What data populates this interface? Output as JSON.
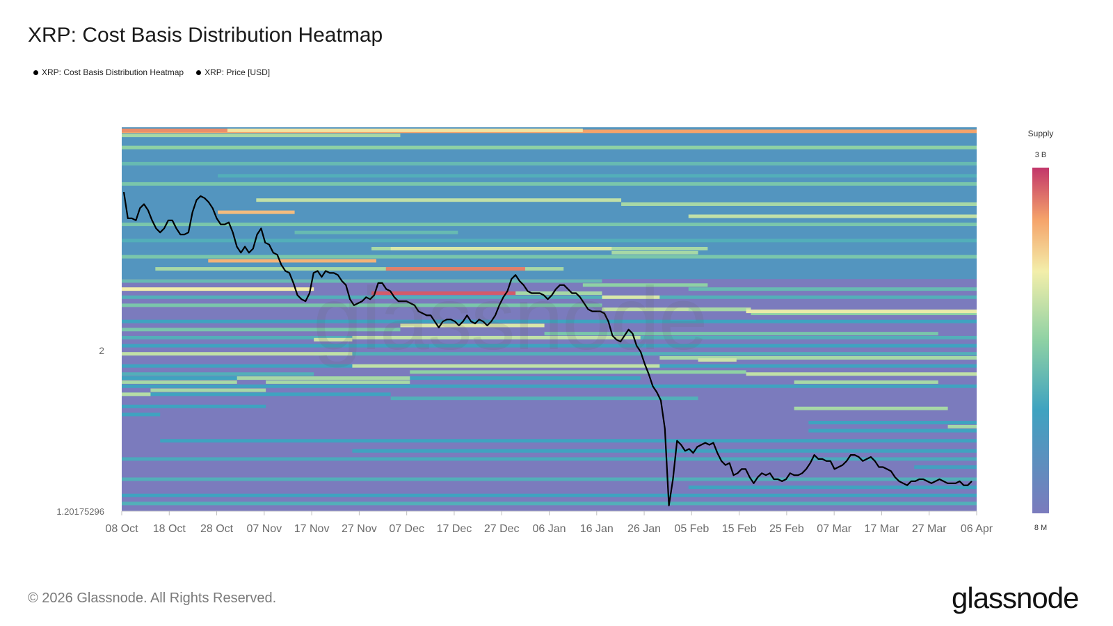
{
  "header": {
    "title": "XRP: Cost Basis Distribution Heatmap"
  },
  "legend": {
    "items": [
      "XRP: Cost Basis Distribution Heatmap",
      "XRP: Price [USD]"
    ]
  },
  "footer": {
    "copyright": "© 2026 Glassnode. All Rights Reserved.",
    "brand": "glassnode"
  },
  "watermark": "glassnode",
  "colors": {
    "low": "#7b7bbd",
    "mid1": "#3fa3c0",
    "mid2": "#8ed1a4",
    "mid3": "#f3eeaa",
    "mid4": "#f5a36a",
    "high": "#c2366a",
    "price_line": "#000000"
  },
  "chart_data": {
    "type": "heatmap",
    "title": "XRP: Cost Basis Distribution Heatmap",
    "x_ticks": [
      "08 Oct",
      "18 Oct",
      "28 Oct",
      "07 Nov",
      "17 Nov",
      "27 Nov",
      "07 Dec",
      "17 Dec",
      "27 Dec",
      "06 Jan",
      "16 Jan",
      "26 Jan",
      "05 Feb",
      "15 Feb",
      "25 Feb",
      "07 Mar",
      "17 Mar",
      "27 Mar",
      "06 Apr"
    ],
    "y_tick_labels": [
      "2",
      "1.20175296"
    ],
    "y_range": [
      1.20175296,
      3.1
    ],
    "colorbar": {
      "title": "Supply",
      "max_label": "3 B",
      "min_label": "8 M"
    },
    "bands": [
      {
        "start": 0,
        "end": 178,
        "price": 3.08,
        "level": 0.85
      },
      {
        "start": 0,
        "end": 58,
        "price": 3.06,
        "level": 0.55
      },
      {
        "start": 0,
        "end": 178,
        "price": 3.0,
        "level": 0.5
      },
      {
        "start": 0,
        "end": 178,
        "price": 2.92,
        "level": 0.4
      },
      {
        "start": 20,
        "end": 178,
        "price": 2.86,
        "level": 0.35
      },
      {
        "start": 0,
        "end": 178,
        "price": 2.82,
        "level": 0.45
      },
      {
        "start": 28,
        "end": 104,
        "price": 2.74,
        "level": 0.6
      },
      {
        "start": 104,
        "end": 178,
        "price": 2.72,
        "level": 0.55
      },
      {
        "start": 20,
        "end": 36,
        "price": 2.68,
        "level": 0.8
      },
      {
        "start": 118,
        "end": 178,
        "price": 2.66,
        "level": 0.6
      },
      {
        "start": 0,
        "end": 178,
        "price": 2.62,
        "level": 0.45
      },
      {
        "start": 36,
        "end": 70,
        "price": 2.58,
        "level": 0.4
      },
      {
        "start": 0,
        "end": 178,
        "price": 2.54,
        "level": 0.35
      },
      {
        "start": 52,
        "end": 122,
        "price": 2.5,
        "level": 0.55
      },
      {
        "start": 0,
        "end": 178,
        "price": 2.46,
        "level": 0.45
      },
      {
        "start": 7,
        "end": 92,
        "price": 2.4,
        "level": 0.55
      },
      {
        "start": 55,
        "end": 84,
        "price": 2.4,
        "level": 0.9
      },
      {
        "start": 0,
        "end": 100,
        "price": 2.34,
        "level": 0.4
      },
      {
        "start": 96,
        "end": 122,
        "price": 2.32,
        "level": 0.5
      },
      {
        "start": 118,
        "end": 178,
        "price": 2.3,
        "level": 0.4
      },
      {
        "start": 0,
        "end": 178,
        "price": 2.26,
        "level": 0.35
      },
      {
        "start": 0,
        "end": 100,
        "price": 2.22,
        "level": 0.45
      },
      {
        "start": 100,
        "end": 131,
        "price": 2.2,
        "level": 0.6
      },
      {
        "start": 131,
        "end": 178,
        "price": 2.18,
        "level": 0.5
      },
      {
        "start": 0,
        "end": 178,
        "price": 2.14,
        "level": 0.3
      },
      {
        "start": 0,
        "end": 58,
        "price": 2.1,
        "level": 0.45
      },
      {
        "start": 58,
        "end": 88,
        "price": 2.12,
        "level": 0.65
      },
      {
        "start": 88,
        "end": 170,
        "price": 2.08,
        "level": 0.45
      },
      {
        "start": 0,
        "end": 178,
        "price": 2.06,
        "level": 0.35
      },
      {
        "start": 0,
        "end": 178,
        "price": 2.02,
        "level": 0.3
      },
      {
        "start": 40,
        "end": 178,
        "price": 1.98,
        "level": 0.35
      },
      {
        "start": 122,
        "end": 178,
        "price": 1.96,
        "level": 0.4
      },
      {
        "start": 0,
        "end": 178,
        "price": 1.92,
        "level": 0.3
      },
      {
        "start": 0,
        "end": 40,
        "price": 1.88,
        "level": 0.35
      },
      {
        "start": 0,
        "end": 108,
        "price": 1.86,
        "level": 0.3
      },
      {
        "start": 0,
        "end": 178,
        "price": 1.82,
        "level": 0.3
      },
      {
        "start": 0,
        "end": 56,
        "price": 1.78,
        "level": 0.3
      },
      {
        "start": 56,
        "end": 120,
        "price": 1.76,
        "level": 0.35
      },
      {
        "start": 0,
        "end": 30,
        "price": 1.72,
        "level": 0.3
      },
      {
        "start": 0,
        "end": 8,
        "price": 1.68,
        "level": 0.3
      },
      {
        "start": 143,
        "end": 178,
        "price": 1.64,
        "level": 0.3
      },
      {
        "start": 143,
        "end": 178,
        "price": 1.6,
        "level": 0.3
      },
      {
        "start": 8,
        "end": 178,
        "price": 1.55,
        "level": 0.3
      },
      {
        "start": 48,
        "end": 178,
        "price": 1.5,
        "level": 0.3
      },
      {
        "start": 0,
        "end": 178,
        "price": 1.46,
        "level": 0.33
      },
      {
        "start": 165,
        "end": 178,
        "price": 1.42,
        "level": 0.28
      },
      {
        "start": 0,
        "end": 178,
        "price": 1.36,
        "level": 0.35
      },
      {
        "start": 118,
        "end": 178,
        "price": 1.32,
        "level": 0.3
      },
      {
        "start": 0,
        "end": 178,
        "price": 1.28,
        "level": 0.3
      },
      {
        "start": 0,
        "end": 178,
        "price": 1.24,
        "level": 0.35
      }
    ],
    "highlights": [
      {
        "start": 0,
        "end": 22,
        "price": 3.085,
        "level": 0.88
      },
      {
        "start": 22,
        "end": 96,
        "price": 3.085,
        "level": 0.72
      },
      {
        "start": 56,
        "end": 102,
        "price": 2.5,
        "level": 0.65
      },
      {
        "start": 102,
        "end": 120,
        "price": 2.48,
        "level": 0.55
      },
      {
        "start": 18,
        "end": 53,
        "price": 2.44,
        "level": 0.82
      },
      {
        "start": 0,
        "end": 40,
        "price": 2.3,
        "level": 0.7
      },
      {
        "start": 52,
        "end": 82,
        "price": 2.28,
        "level": 0.95
      },
      {
        "start": 82,
        "end": 100,
        "price": 2.28,
        "level": 0.55
      },
      {
        "start": 100,
        "end": 112,
        "price": 2.26,
        "level": 0.65
      },
      {
        "start": 118,
        "end": 130,
        "price": 2.2,
        "level": 0.55
      },
      {
        "start": 130,
        "end": 178,
        "price": 2.19,
        "level": 0.68
      },
      {
        "start": 48,
        "end": 108,
        "price": 2.06,
        "level": 0.6
      },
      {
        "start": 40,
        "end": 48,
        "price": 2.05,
        "level": 0.62
      },
      {
        "start": 0,
        "end": 48,
        "price": 1.98,
        "level": 0.6
      },
      {
        "start": 48,
        "end": 112,
        "price": 1.92,
        "level": 0.6
      },
      {
        "start": 112,
        "end": 178,
        "price": 1.96,
        "level": 0.55
      },
      {
        "start": 120,
        "end": 128,
        "price": 1.95,
        "level": 0.62
      },
      {
        "start": 130,
        "end": 178,
        "price": 1.88,
        "level": 0.6
      },
      {
        "start": 0,
        "end": 24,
        "price": 1.84,
        "level": 0.55
      },
      {
        "start": 24,
        "end": 60,
        "price": 1.86,
        "level": 0.55
      },
      {
        "start": 60,
        "end": 130,
        "price": 1.89,
        "level": 0.5
      },
      {
        "start": 140,
        "end": 170,
        "price": 1.84,
        "level": 0.55
      },
      {
        "start": 0,
        "end": 6,
        "price": 1.78,
        "level": 0.58
      },
      {
        "start": 6,
        "end": 30,
        "price": 1.8,
        "level": 0.55
      },
      {
        "start": 30,
        "end": 60,
        "price": 1.84,
        "level": 0.55
      },
      {
        "start": 140,
        "end": 172,
        "price": 1.71,
        "level": 0.55
      },
      {
        "start": 172,
        "end": 178,
        "price": 1.62,
        "level": 0.55
      }
    ],
    "price_series": [
      2.78,
      2.65,
      2.65,
      2.64,
      2.7,
      2.72,
      2.69,
      2.64,
      2.6,
      2.58,
      2.6,
      2.64,
      2.64,
      2.6,
      2.57,
      2.57,
      2.58,
      2.68,
      2.74,
      2.76,
      2.75,
      2.73,
      2.7,
      2.65,
      2.62,
      2.62,
      2.63,
      2.58,
      2.51,
      2.48,
      2.51,
      2.48,
      2.5,
      2.57,
      2.6,
      2.53,
      2.52,
      2.48,
      2.47,
      2.42,
      2.39,
      2.38,
      2.33,
      2.27,
      2.25,
      2.24,
      2.28,
      2.38,
      2.39,
      2.36,
      2.39,
      2.38,
      2.38,
      2.37,
      2.34,
      2.32,
      2.25,
      2.22,
      2.23,
      2.24,
      2.26,
      2.25,
      2.27,
      2.33,
      2.33,
      2.3,
      2.29,
      2.26,
      2.24,
      2.24,
      2.24,
      2.23,
      2.22,
      2.19,
      2.18,
      2.17,
      2.17,
      2.14,
      2.11,
      2.14,
      2.15,
      2.15,
      2.14,
      2.12,
      2.14,
      2.17,
      2.14,
      2.13,
      2.15,
      2.14,
      2.12,
      2.14,
      2.17,
      2.22,
      2.26,
      2.29,
      2.35,
      2.37,
      2.34,
      2.32,
      2.29,
      2.28,
      2.28,
      2.28,
      2.27,
      2.25,
      2.27,
      2.3,
      2.32,
      2.32,
      2.3,
      2.28,
      2.28,
      2.26,
      2.23,
      2.2,
      2.19,
      2.19,
      2.19,
      2.18,
      2.14,
      2.07,
      2.05,
      2.04,
      2.07,
      2.1,
      2.08,
      2.02,
      1.99,
      1.93,
      1.88,
      1.82,
      1.79,
      1.75,
      1.61,
      1.23,
      1.36,
      1.55,
      1.53,
      1.5,
      1.51,
      1.49,
      1.52,
      1.53,
      1.54,
      1.53,
      1.54,
      1.49,
      1.45,
      1.43,
      1.44,
      1.38,
      1.39,
      1.41,
      1.41,
      1.37,
      1.34,
      1.37,
      1.39,
      1.38,
      1.39,
      1.36,
      1.36,
      1.35,
      1.36,
      1.39,
      1.38,
      1.38,
      1.39,
      1.41,
      1.44,
      1.48,
      1.46,
      1.46,
      1.45,
      1.45,
      1.41,
      1.42,
      1.43,
      1.45,
      1.48,
      1.48,
      1.47,
      1.45,
      1.46,
      1.47,
      1.45,
      1.42,
      1.42,
      1.41,
      1.4,
      1.37,
      1.35,
      1.34,
      1.33,
      1.35,
      1.35,
      1.36,
      1.36,
      1.35,
      1.34,
      1.35,
      1.36,
      1.35,
      1.34,
      1.34,
      1.34,
      1.35,
      1.33,
      1.33,
      1.35
    ]
  }
}
